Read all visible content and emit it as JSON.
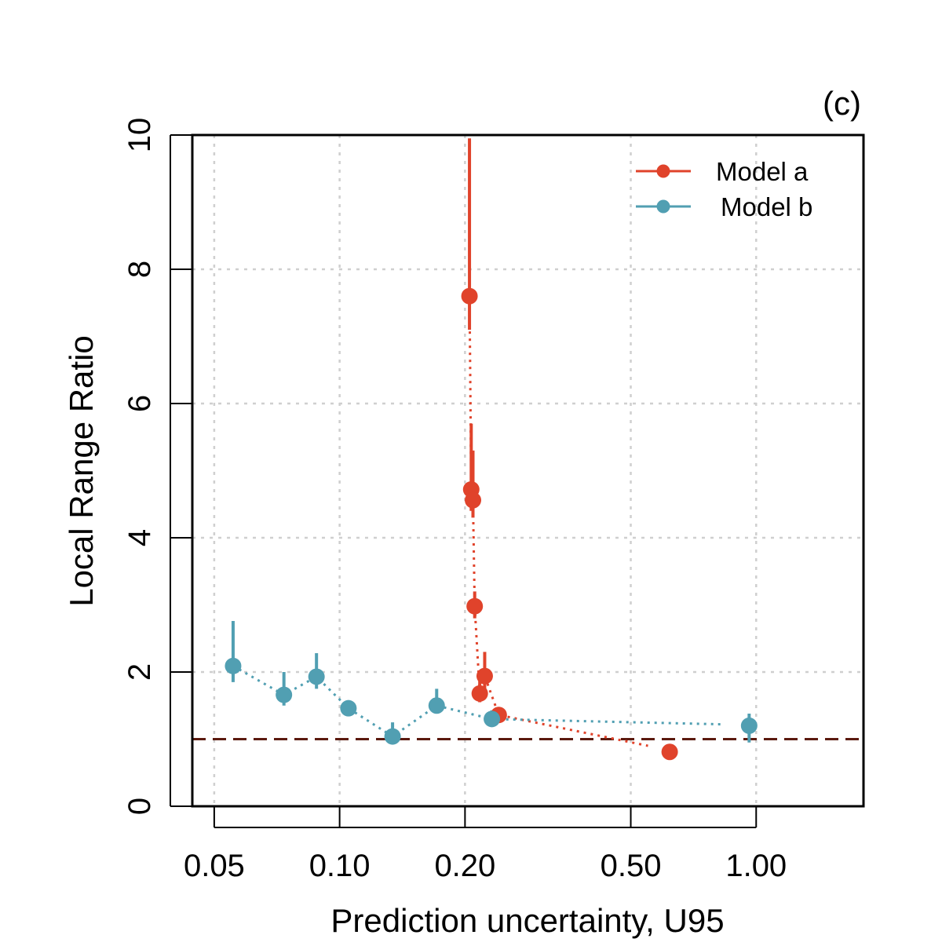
{
  "chart_data": {
    "type": "scatter",
    "panel_label": "(c)",
    "xlabel": "Prediction uncertainty, U95",
    "ylabel": "Local Range Ratio",
    "x_scale": "log",
    "xlim": [
      0.0443,
      1.81
    ],
    "ylim": [
      0,
      10
    ],
    "x_ticks": [
      0.05,
      0.1,
      0.2,
      0.5,
      1.0
    ],
    "x_tick_labels": [
      "0.05",
      "0.10",
      "0.20",
      "0.50",
      "1.00"
    ],
    "y_ticks": [
      0,
      2,
      4,
      6,
      8,
      10
    ],
    "y_tick_labels": [
      "0",
      "2",
      "4",
      "6",
      "8",
      "10"
    ],
    "grid": true,
    "reference_line": {
      "y": 1,
      "style": "dashed",
      "color": "#5b1a0f"
    },
    "legend": {
      "position": "top-right",
      "entries": [
        "Model a",
        "Model b"
      ]
    },
    "series": [
      {
        "name": "Model a",
        "color": "#e0432b",
        "points": [
          {
            "x": 0.205,
            "y": 7.6,
            "lo": 7.1,
            "hi": 9.95
          },
          {
            "x": 0.207,
            "y": 4.72,
            "lo": 4.4,
            "hi": 5.7
          },
          {
            "x": 0.209,
            "y": 4.56,
            "lo": 4.3,
            "hi": 5.3
          },
          {
            "x": 0.211,
            "y": 2.98,
            "lo": 2.8,
            "hi": 3.2
          },
          {
            "x": 0.217,
            "y": 1.68,
            "lo": 1.55,
            "hi": 2.0
          },
          {
            "x": 0.223,
            "y": 1.94,
            "lo": 1.75,
            "hi": 2.3
          },
          {
            "x": 0.241,
            "y": 1.36,
            "lo": 1.25,
            "hi": 1.48
          },
          {
            "x": 0.62,
            "y": 0.81,
            "lo": 0.77,
            "hi": 0.86
          }
        ],
        "trend_line": [
          {
            "x": 0.205,
            "y": 7.6
          },
          {
            "x": 0.207,
            "y": 4.72
          },
          {
            "x": 0.209,
            "y": 4.56
          },
          {
            "x": 0.211,
            "y": 2.98
          },
          {
            "x": 0.217,
            "y": 1.68
          },
          {
            "x": 0.223,
            "y": 1.94
          },
          {
            "x": 0.241,
            "y": 1.36
          },
          {
            "x": 0.55,
            "y": 0.9
          }
        ]
      },
      {
        "name": "Model b",
        "color": "#519fb2",
        "points": [
          {
            "x": 0.0555,
            "y": 2.09,
            "lo": 1.85,
            "hi": 2.76
          },
          {
            "x": 0.0735,
            "y": 1.66,
            "lo": 1.5,
            "hi": 2.0
          },
          {
            "x": 0.088,
            "y": 1.93,
            "lo": 1.75,
            "hi": 2.28
          },
          {
            "x": 0.105,
            "y": 1.46,
            "lo": 1.38,
            "hi": 1.56
          },
          {
            "x": 0.134,
            "y": 1.04,
            "lo": 0.96,
            "hi": 1.25
          },
          {
            "x": 0.171,
            "y": 1.5,
            "lo": 1.4,
            "hi": 1.75
          },
          {
            "x": 0.232,
            "y": 1.3,
            "lo": 1.2,
            "hi": 1.43
          },
          {
            "x": 0.962,
            "y": 1.2,
            "lo": 0.95,
            "hi": 1.38
          }
        ],
        "trend_line": [
          {
            "x": 0.0555,
            "y": 2.09
          },
          {
            "x": 0.0735,
            "y": 1.66
          },
          {
            "x": 0.088,
            "y": 1.93
          },
          {
            "x": 0.105,
            "y": 1.46
          },
          {
            "x": 0.134,
            "y": 1.04
          },
          {
            "x": 0.171,
            "y": 1.5
          },
          {
            "x": 0.232,
            "y": 1.3
          },
          {
            "x": 0.84,
            "y": 1.22
          }
        ]
      }
    ]
  }
}
